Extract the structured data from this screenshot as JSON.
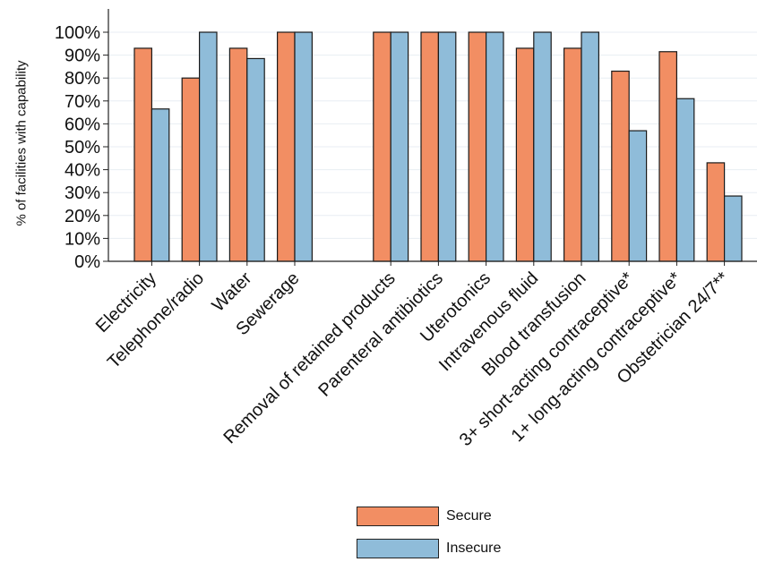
{
  "chart_data": {
    "type": "bar",
    "ylabel": "% of facilities with capability",
    "xlabel": "",
    "ylim": [
      0,
      100
    ],
    "yticks": [
      "0%",
      "10%",
      "20%",
      "30%",
      "40%",
      "50%",
      "60%",
      "70%",
      "80%",
      "90%",
      "100%"
    ],
    "grid": true,
    "legend_position": "bottom",
    "categories": [
      "Electricity",
      "Telephone/radio",
      "Water",
      "Sewerage",
      "Removal of retained products",
      "Parenteral antibiotics",
      "Uterotonics",
      "Intravenous fluid",
      "Blood transfusion",
      "3+ short-acting contraceptive*",
      "1+ long-acting contraceptive*",
      "Obstetrician 24/7**"
    ],
    "series": [
      {
        "name": "Secure",
        "color": "#f28e63",
        "values": [
          93,
          80,
          93,
          100,
          100,
          100,
          100,
          93,
          93,
          83,
          91.5,
          43
        ]
      },
      {
        "name": "Insecure",
        "color": "#8fbcd9",
        "values": [
          66.5,
          100,
          88.5,
          100,
          100,
          100,
          100,
          100,
          100,
          57,
          71,
          28.5
        ]
      }
    ]
  }
}
